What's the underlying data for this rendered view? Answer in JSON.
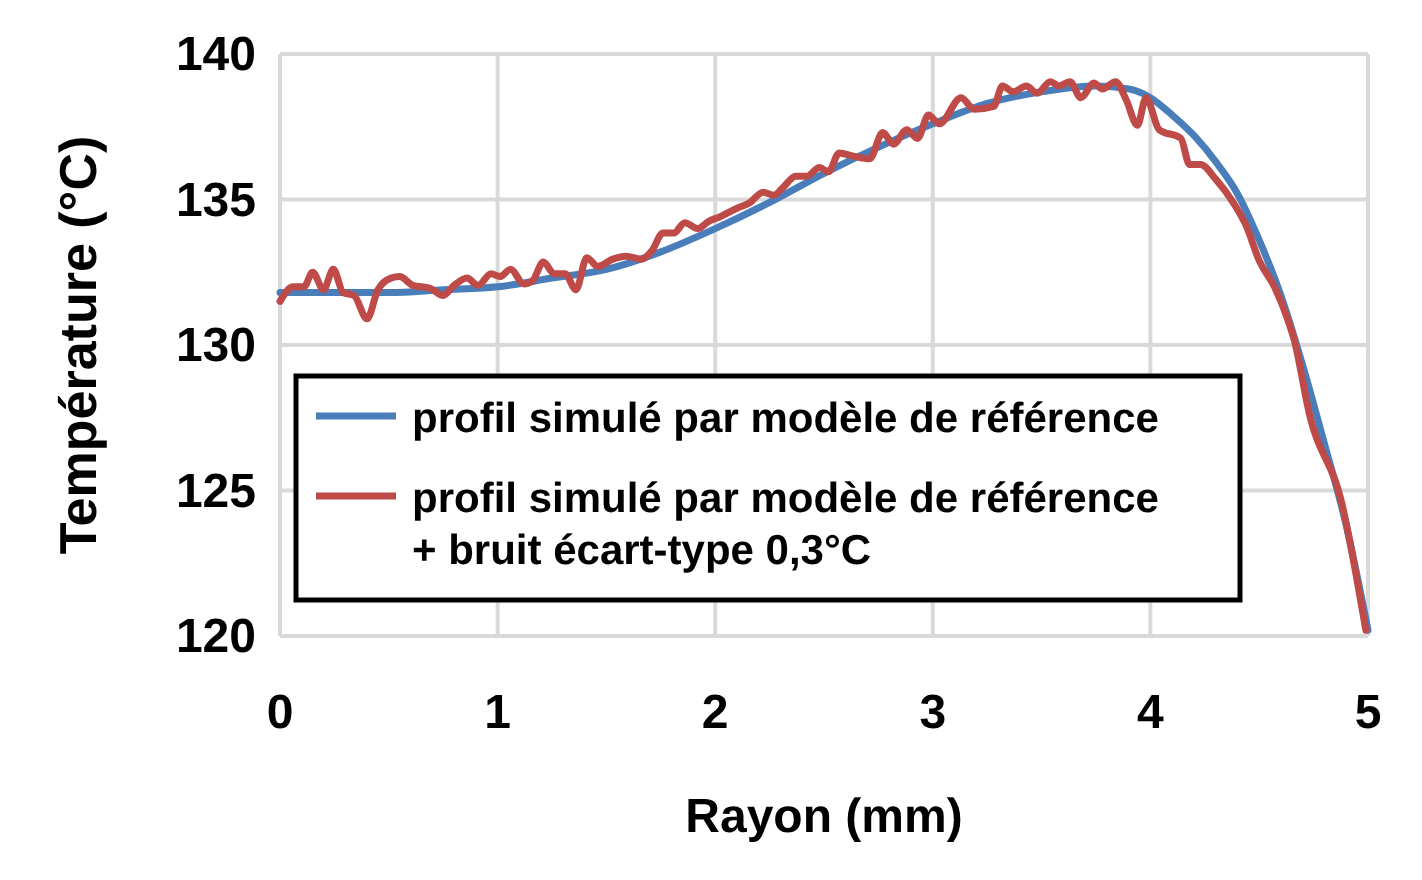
{
  "chart_data": {
    "type": "line",
    "xlabel": "Rayon (mm)",
    "ylabel": "Température (°C)",
    "xlim": [
      0,
      5
    ],
    "xticks": [
      0,
      1,
      2,
      3,
      4,
      5
    ],
    "ylim": [
      120,
      140
    ],
    "yticks": [
      120,
      125,
      130,
      135,
      140
    ],
    "grid": true,
    "legend": "bottom left",
    "marker": "none",
    "line_style": "solid",
    "series": [
      {
        "name": "profil simulé par modèle de référence",
        "color": "#4a7ebb",
        "x": [
          0,
          0.25,
          0.5,
          0.75,
          1,
          1.25,
          1.5,
          1.75,
          2,
          2.25,
          2.5,
          2.75,
          3,
          3.25,
          3.5,
          3.75,
          3.9,
          4,
          4.1,
          4.2,
          4.3,
          4.4,
          4.5,
          4.6,
          4.7,
          4.8,
          4.9,
          5
        ],
        "values": [
          131.8,
          131.8,
          131.8,
          131.9,
          132.0,
          132.3,
          132.6,
          133.2,
          134.0,
          134.9,
          135.9,
          136.8,
          137.6,
          138.3,
          138.7,
          138.9,
          138.8,
          138.5,
          137.9,
          137.2,
          136.3,
          135.2,
          133.6,
          131.7,
          129.3,
          126.6,
          123.8,
          120.2
        ]
      },
      {
        "name": "profil simulé par modèle de référence\n+ bruit écart-type 0,3°C",
        "color": "#be4b48",
        "x": [
          0,
          0.06,
          0.11,
          0.15,
          0.2,
          0.245,
          0.29,
          0.34,
          0.4,
          0.45,
          0.51,
          0.55,
          0.61,
          0.69,
          0.75,
          0.8,
          0.86,
          0.91,
          0.97,
          1.01,
          1.06,
          1.12,
          1.16,
          1.21,
          1.26,
          1.31,
          1.36,
          1.41,
          1.46,
          1.53,
          1.59,
          1.66,
          1.71,
          1.76,
          1.81,
          1.86,
          1.92,
          1.97,
          2.02,
          2.1,
          2.16,
          2.22,
          2.27,
          2.31,
          2.37,
          2.42,
          2.48,
          2.52,
          2.57,
          2.63,
          2.71,
          2.77,
          2.82,
          2.88,
          2.93,
          2.98,
          3.03,
          3.13,
          3.19,
          3.28,
          3.32,
          3.37,
          3.43,
          3.48,
          3.54,
          3.58,
          3.63,
          3.68,
          3.74,
          3.78,
          3.84,
          3.89,
          3.94,
          3.98,
          4.04,
          4.14,
          4.18,
          4.23,
          4.3,
          4.38,
          4.44,
          4.5,
          4.57,
          4.63,
          4.66,
          4.73,
          4.88,
          4.99
        ],
        "values": [
          131.5,
          132.0,
          132.0,
          132.5,
          131.9,
          132.6,
          131.8,
          131.7,
          130.9,
          131.9,
          132.3,
          132.35,
          132.05,
          131.95,
          131.7,
          132.05,
          132.3,
          132.05,
          132.45,
          132.35,
          132.6,
          132.1,
          132.2,
          132.85,
          132.45,
          132.45,
          131.9,
          133.0,
          132.7,
          132.95,
          133.05,
          132.95,
          133.25,
          133.85,
          133.85,
          134.2,
          134.0,
          134.25,
          134.4,
          134.7,
          134.9,
          135.25,
          135.15,
          135.4,
          135.8,
          135.8,
          136.1,
          135.95,
          136.6,
          136.5,
          136.4,
          137.3,
          136.9,
          137.4,
          137.1,
          137.9,
          137.6,
          138.5,
          138.1,
          138.2,
          138.9,
          138.7,
          138.9,
          138.65,
          139.05,
          138.9,
          139.05,
          138.5,
          139.0,
          138.8,
          139.05,
          138.4,
          137.55,
          138.5,
          137.4,
          137.1,
          136.2,
          136.2,
          135.7,
          134.9,
          134.1,
          132.9,
          132.0,
          130.9,
          130.2,
          127.65,
          124.55,
          120.2
        ]
      }
    ]
  }
}
